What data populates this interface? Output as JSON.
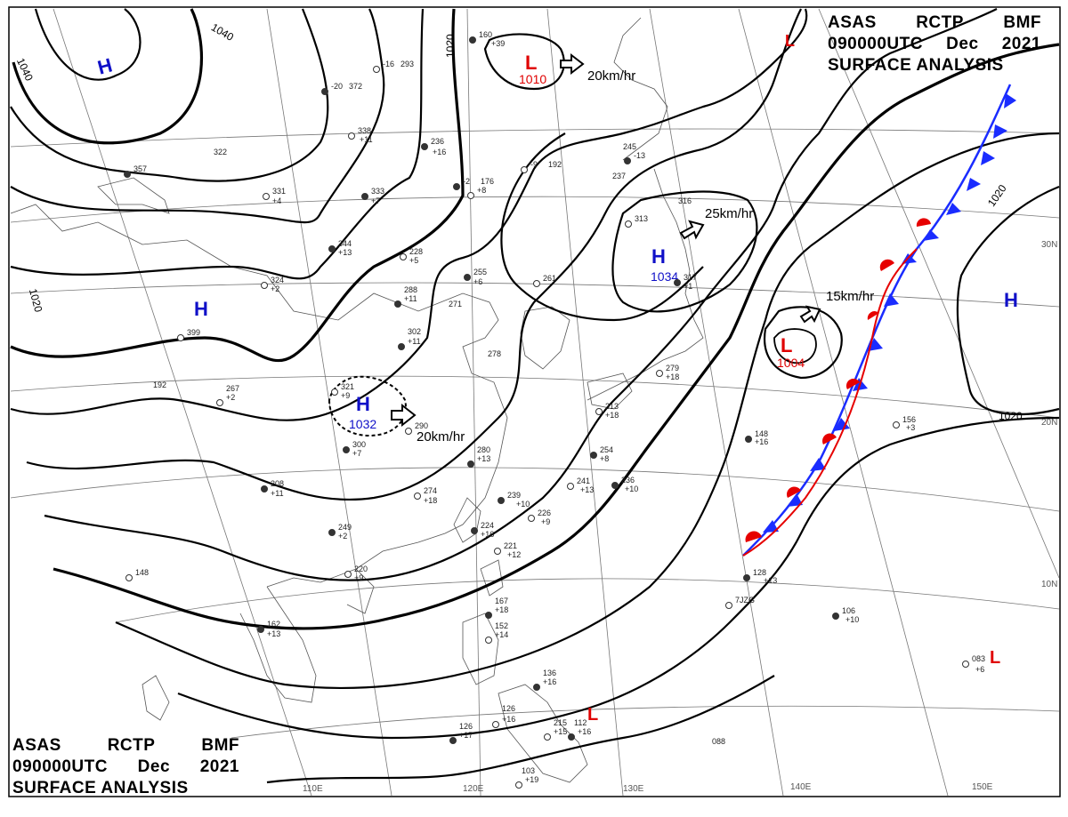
{
  "header": {
    "line1": [
      "ASAS",
      "RCTP",
      "BMF"
    ],
    "line2": [
      "090000UTC",
      "Dec",
      "2021"
    ],
    "line3": "SURFACE ANALYSIS"
  },
  "colors": {
    "isobar": "#000000",
    "high": "#1010c8",
    "low": "#e00000",
    "cold_front": "#1a2cff",
    "warm_front": "#e60000",
    "graticule": "#777777",
    "coastline": "#555555"
  },
  "pressure_centers": [
    {
      "type": "H",
      "label": "H",
      "value": ""
    },
    {
      "type": "H",
      "label": "H",
      "value": ""
    },
    {
      "type": "H",
      "label": "H",
      "value": "1032"
    },
    {
      "type": "H",
      "label": "H",
      "value": "1034"
    },
    {
      "type": "H",
      "label": "H",
      "value": ""
    },
    {
      "type": "L",
      "label": "L",
      "value": "1010"
    },
    {
      "type": "L",
      "label": "L",
      "value": "1004"
    },
    {
      "type": "L",
      "label": "L",
      "value": ""
    },
    {
      "type": "L",
      "label": "L",
      "value": ""
    },
    {
      "type": "L",
      "label": "L",
      "value": ""
    }
  ],
  "motion_labels": [
    "20km/hr",
    "25km/hr",
    "15km/hr",
    "20km/hr"
  ],
  "isobar_labels": [
    "1040",
    "1040",
    "1020",
    "1020",
    "1020",
    "1020"
  ],
  "lon_labels": [
    "110E",
    "120E",
    "130E",
    "140E",
    "150E"
  ],
  "lat_labels": [
    "30N",
    "20N",
    "10N"
  ],
  "stations": [
    "160",
    "+39",
    "-16",
    "293",
    "-20",
    "372",
    "338",
    "+11",
    "236",
    "+16",
    "-9",
    "192",
    "-2",
    "176",
    "+8",
    "245",
    "-13",
    "237",
    "313",
    "316",
    "357",
    "322",
    "331",
    "+4",
    "333",
    "+7",
    "228",
    "+5",
    "255",
    "+6",
    "261",
    "288",
    "+11",
    "271",
    "324",
    "+2",
    "344",
    "+13",
    "399",
    "302",
    "+11",
    "278",
    "321",
    "+9",
    "300",
    "+7",
    "290",
    "280",
    "+13",
    "267",
    "+2",
    "192",
    "208",
    "+11",
    "274",
    "+18",
    "239",
    "+10",
    "226",
    "+9",
    "224",
    "+16",
    "221",
    "+12",
    "249",
    "+2",
    "220",
    "+9",
    "254",
    "+8",
    "241",
    "+13",
    "236",
    "+10",
    "279",
    "+18",
    "148",
    "+16",
    "156",
    "+3",
    "317",
    "+1",
    "213",
    "+18",
    "162",
    "+13",
    "148",
    "167",
    "+18",
    "152",
    "+14",
    "136",
    "+16",
    "126",
    "+16",
    "126",
    "+17",
    "215",
    "+15",
    "112",
    "+16",
    "103",
    "+19",
    "088",
    "106",
    "+10",
    "083",
    "+6",
    "128",
    "+13",
    "7JZG"
  ]
}
